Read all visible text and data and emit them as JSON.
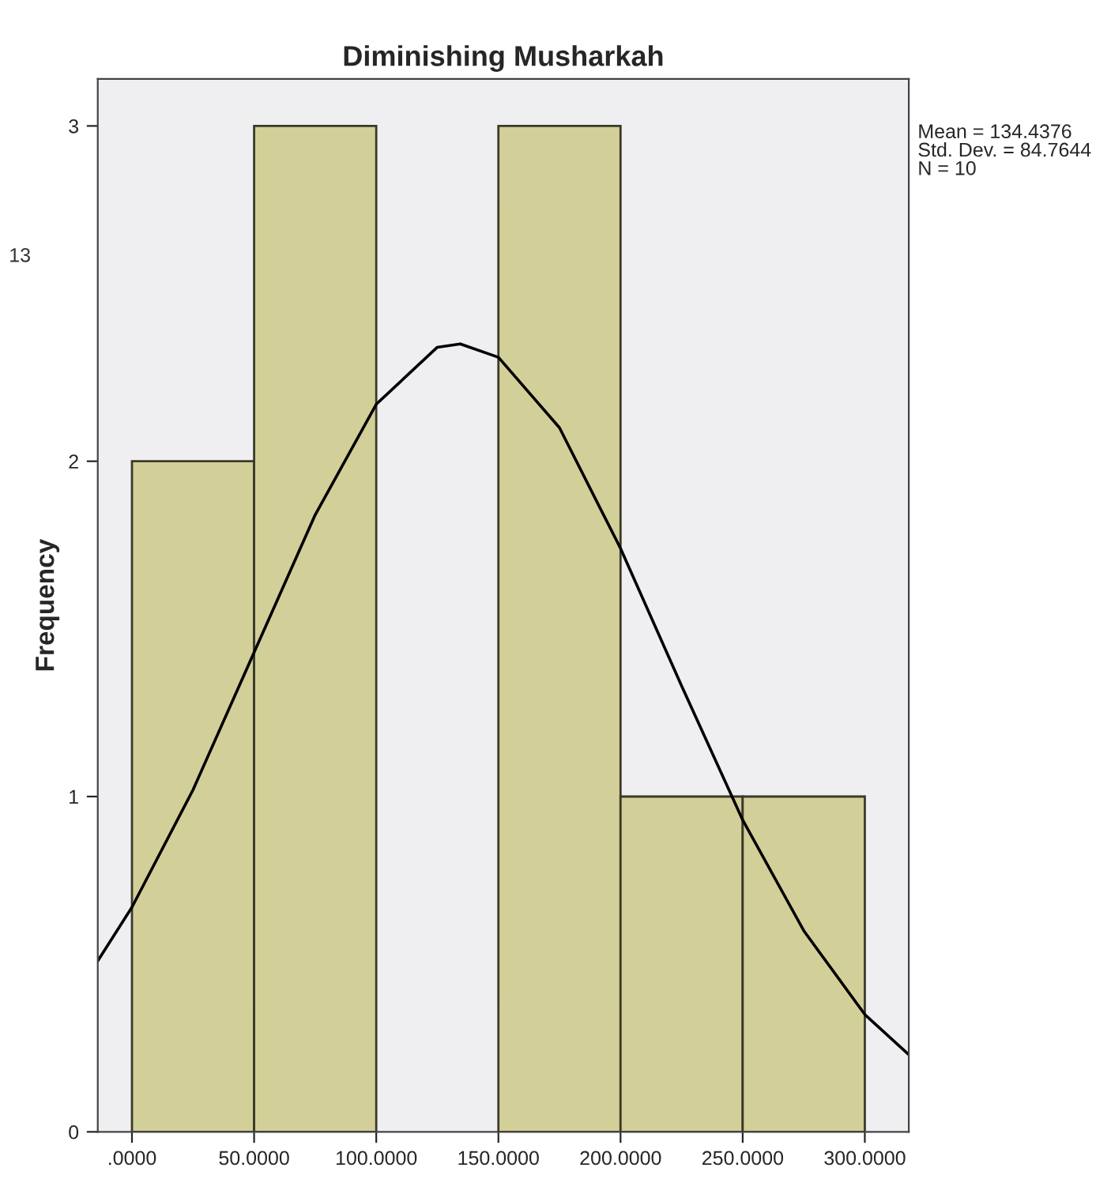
{
  "chart_data": {
    "type": "histogram",
    "title": "Diminishing Musharkah",
    "ylabel": "Frequency",
    "bins": [
      0,
      50,
      100,
      150,
      200,
      250,
      300
    ],
    "values": [
      2,
      3,
      0,
      3,
      1,
      1
    ],
    "color": "#d3cf98",
    "series": [
      {
        "type": "line",
        "color": "#000000",
        "x": [
          -14,
          0,
          25,
          50,
          75,
          100,
          125,
          134.4,
          150,
          175,
          200,
          225,
          250,
          275,
          300,
          318
        ],
        "values": [
          0.51,
          0.67,
          1.02,
          1.43,
          1.84,
          2.17,
          2.34,
          2.35,
          2.31,
          2.1,
          1.74,
          1.33,
          0.93,
          0.6,
          0.35,
          0.23
        ]
      }
    ],
    "xlim": [
      -14,
      318
    ],
    "ylim": [
      0,
      3.14
    ],
    "xticks": [
      {
        "value": 0,
        "label": ".0000"
      },
      {
        "value": 50,
        "label": "50.0000"
      },
      {
        "value": 100,
        "label": "100.0000"
      },
      {
        "value": 150,
        "label": "150.0000"
      },
      {
        "value": 200,
        "label": "200.0000"
      },
      {
        "value": 250,
        "label": "250.0000"
      },
      {
        "value": 300,
        "label": "300.0000"
      }
    ],
    "yticks": [
      0,
      1,
      2,
      3
    ],
    "grid": false,
    "legend": false,
    "annotations": [
      "13",
      "Mean = 134.4376\nStd. Dev. = 84.7644\nN = 10"
    ]
  }
}
